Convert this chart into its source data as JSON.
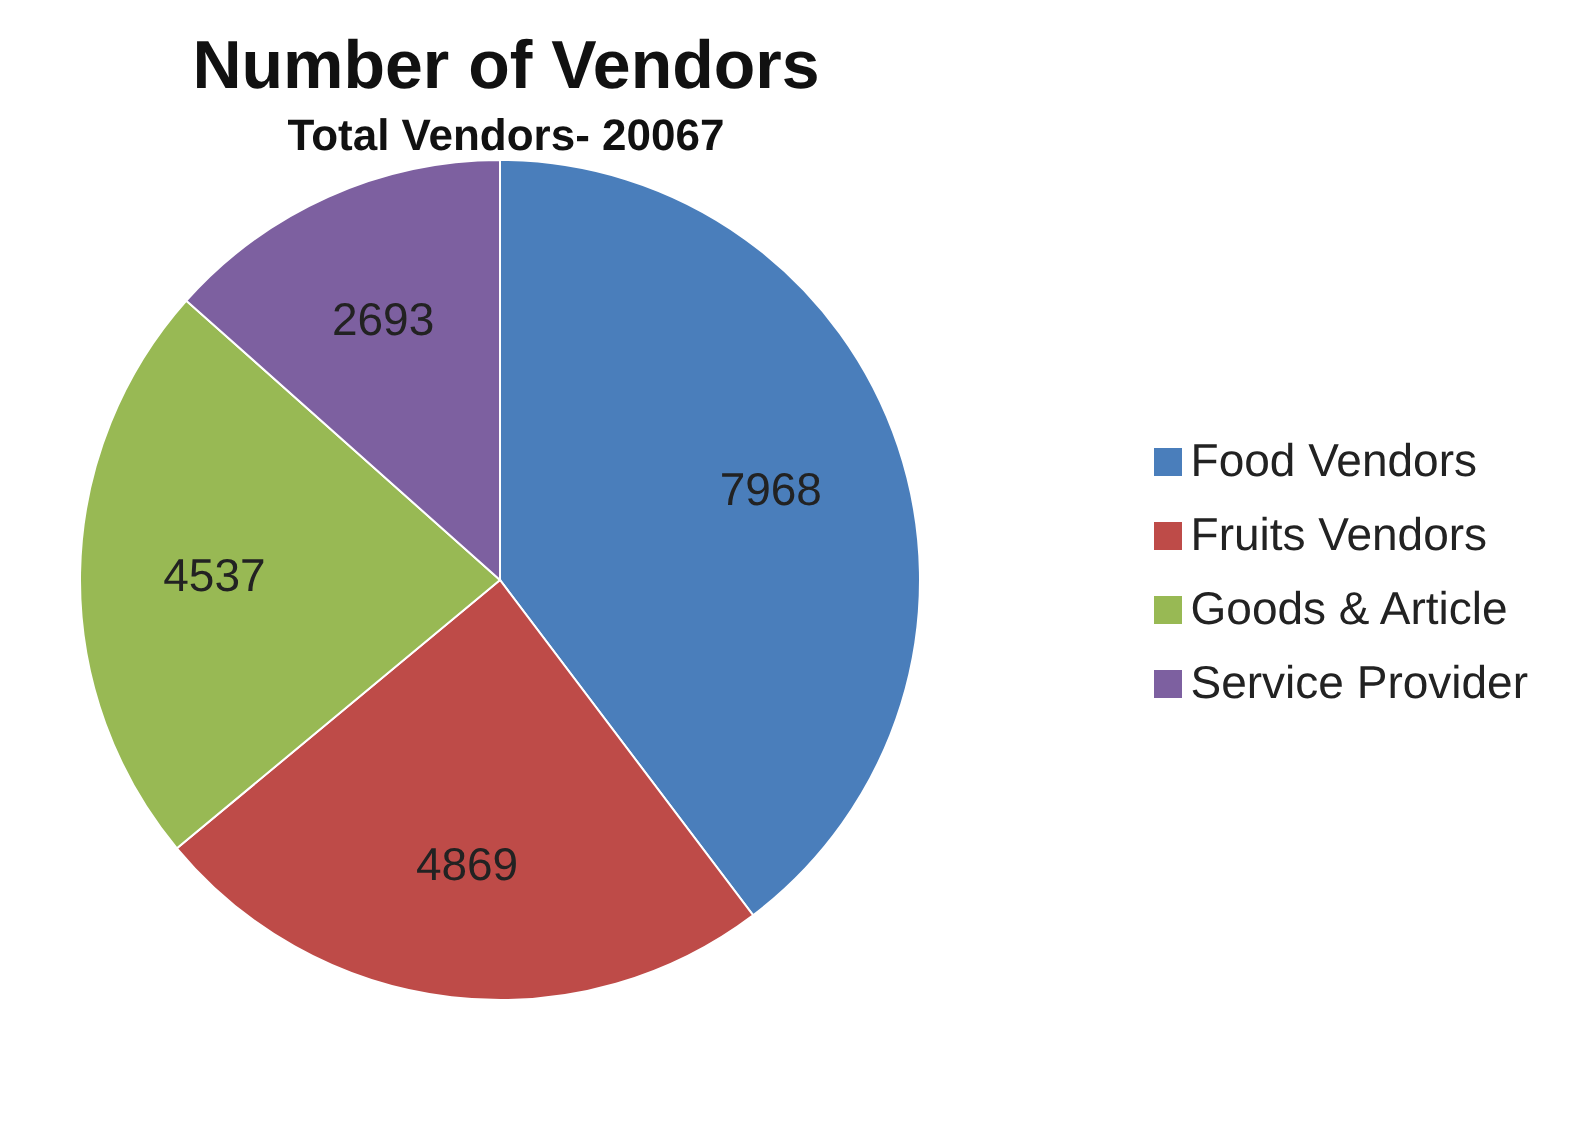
{
  "chart_data": {
    "type": "pie",
    "title": "Number of Vendors",
    "subtitle": "Total Vendors- 20067",
    "categories": [
      "Food Vendors",
      "Fruits Vendors",
      "Goods & Article",
      "Service Provider"
    ],
    "values": [
      7968,
      4869,
      4537,
      2693
    ],
    "colors": [
      "#4a7ebb",
      "#be4b48",
      "#98b954",
      "#7d60a0"
    ],
    "data_labels": true,
    "legend": "right"
  }
}
